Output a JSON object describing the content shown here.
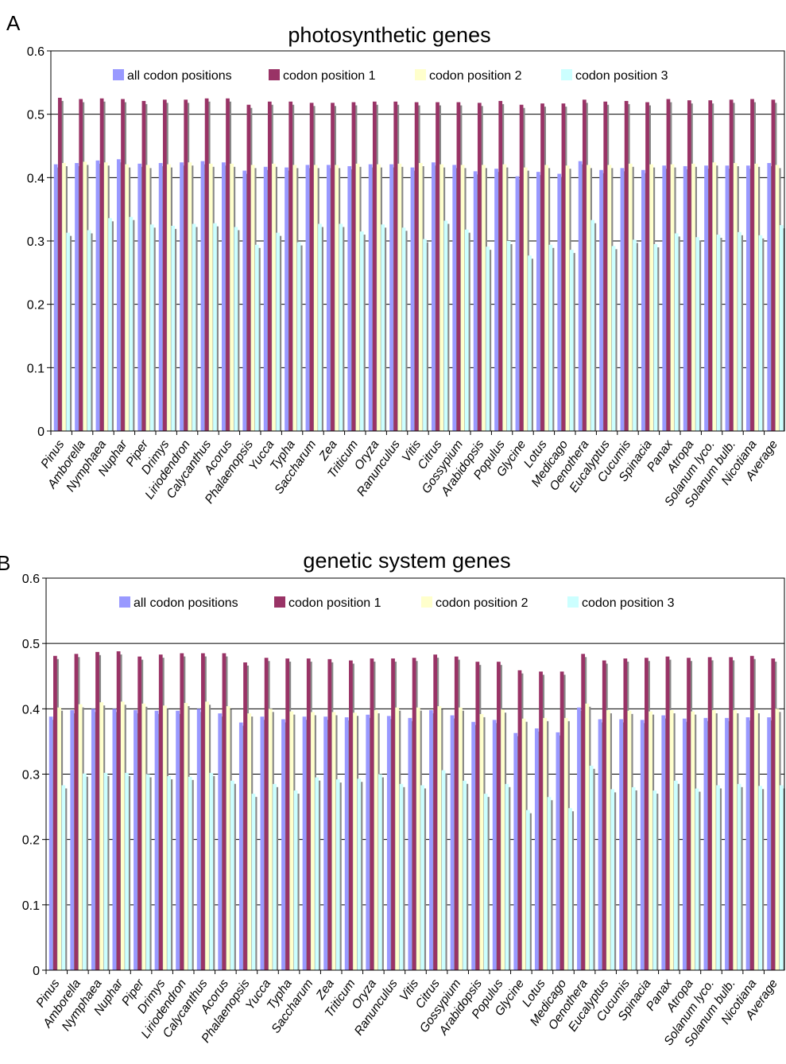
{
  "panels": [
    {
      "letter": "A",
      "title": "photosynthetic genes"
    },
    {
      "letter": "B",
      "title": "genetic system genes"
    }
  ],
  "colors": {
    "all_codon_positions": "#9999ff",
    "codon_position_1": "#993366",
    "codon_position_2": "#ffffcc",
    "codon_position_3": "#ccffff",
    "shadow": "#888888",
    "gridline": "#000000",
    "background": "#ffffff"
  },
  "chart_data": [
    {
      "type": "bar",
      "title": "photosynthetic genes",
      "xlabel": "",
      "ylabel": "",
      "ylim": [
        0,
        0.6
      ],
      "yticks": [
        "0",
        "0.1",
        "0.2",
        "0.3",
        "0.4",
        "0.5",
        "0.6"
      ],
      "grid": true,
      "legend": "top",
      "categories": [
        "Pinus",
        "Amborella",
        "Nymphaea",
        "Nuphar",
        "Piper",
        "Drimys",
        "Liriodendron",
        "Calycanthus",
        "Acorus",
        "Phalaenopsis",
        "Yucca",
        "Typha",
        "Saccharum",
        "Zea",
        "Triticum",
        "Oryza",
        "Ranunculus",
        "Vitis",
        "Citrus",
        "Gossypium",
        "Arabidopsis",
        "Populus",
        "Glycine",
        "Lotus",
        "Medicago",
        "Oenothera",
        "Eucalyptus",
        "Cucumis",
        "Spinacia",
        "Panax",
        "Atropa",
        "Solanum lyco.",
        "Solanum bulb.",
        "Nicotiana",
        "Average"
      ],
      "series": [
        {
          "name": "all codon positions",
          "values": [
            0.421,
            0.423,
            0.427,
            0.429,
            0.422,
            0.423,
            0.424,
            0.426,
            0.424,
            0.411,
            0.417,
            0.416,
            0.42,
            0.42,
            0.418,
            0.421,
            0.421,
            0.416,
            0.424,
            0.42,
            0.41,
            0.414,
            0.402,
            0.409,
            0.406,
            0.426,
            0.412,
            0.415,
            0.412,
            0.419,
            0.418,
            0.419,
            0.419,
            0.419,
            0.423
          ]
        },
        {
          "name": "codon position 1",
          "values": [
            0.526,
            0.524,
            0.525,
            0.524,
            0.521,
            0.523,
            0.523,
            0.525,
            0.525,
            0.515,
            0.52,
            0.52,
            0.518,
            0.518,
            0.519,
            0.52,
            0.52,
            0.519,
            0.519,
            0.519,
            0.518,
            0.521,
            0.515,
            0.517,
            0.517,
            0.523,
            0.52,
            0.521,
            0.519,
            0.524,
            0.522,
            0.522,
            0.523,
            0.524,
            0.523
          ]
        },
        {
          "name": "codon position 2",
          "values": [
            0.423,
            0.425,
            0.424,
            0.421,
            0.42,
            0.421,
            0.424,
            0.422,
            0.422,
            0.42,
            0.422,
            0.42,
            0.42,
            0.42,
            0.422,
            0.421,
            0.422,
            0.423,
            0.421,
            0.42,
            0.42,
            0.421,
            0.416,
            0.42,
            0.419,
            0.42,
            0.42,
            0.422,
            0.421,
            0.421,
            0.422,
            0.424,
            0.423,
            0.422,
            0.42
          ]
        },
        {
          "name": "codon position 3",
          "values": [
            0.313,
            0.317,
            0.336,
            0.338,
            0.326,
            0.324,
            0.327,
            0.328,
            0.322,
            0.294,
            0.313,
            0.298,
            0.327,
            0.327,
            0.315,
            0.326,
            0.321,
            0.303,
            0.332,
            0.318,
            0.291,
            0.3,
            0.277,
            0.294,
            0.286,
            0.333,
            0.292,
            0.302,
            0.295,
            0.312,
            0.306,
            0.31,
            0.314,
            0.309,
            0.325
          ]
        }
      ]
    },
    {
      "type": "bar",
      "title": "genetic system genes",
      "xlabel": "",
      "ylabel": "",
      "ylim": [
        0,
        0.6
      ],
      "yticks": [
        "0",
        "0.1",
        "0.2",
        "0.3",
        "0.4",
        "0.5",
        "0.6"
      ],
      "grid": true,
      "legend": "top",
      "categories": [
        "Pinus",
        "Amborella",
        "Nymphaea",
        "Nuphar",
        "Piper",
        "Drimys",
        "Liriodendron",
        "Calycanthus",
        "Acorus",
        "Phalaenopsis",
        "Yucca",
        "Typha",
        "Saccharum",
        "Zea",
        "Triticum",
        "Oryza",
        "Ranunculus",
        "Vitis",
        "Citrus",
        "Gossypium",
        "Arabidopsis",
        "Populus",
        "Glycine",
        "Lotus",
        "Medicago",
        "Oenothera",
        "Eucalyptus",
        "Cucumis",
        "Spinacia",
        "Panax",
        "Atropa",
        "Solanum lyco.",
        "Solanum bulb.",
        "Nicotiana",
        "Average"
      ],
      "series": [
        {
          "name": "all codon positions",
          "values": [
            0.388,
            0.398,
            0.4,
            0.4,
            0.398,
            0.397,
            0.397,
            0.4,
            0.393,
            0.379,
            0.388,
            0.384,
            0.388,
            0.388,
            0.387,
            0.391,
            0.389,
            0.386,
            0.398,
            0.39,
            0.38,
            0.383,
            0.363,
            0.37,
            0.364,
            0.402,
            0.384,
            0.384,
            0.383,
            0.39,
            0.385,
            0.386,
            0.386,
            0.387,
            0.387
          ]
        },
        {
          "name": "codon position 1",
          "values": [
            0.481,
            0.484,
            0.487,
            0.488,
            0.48,
            0.483,
            0.485,
            0.485,
            0.485,
            0.471,
            0.478,
            0.477,
            0.477,
            0.476,
            0.474,
            0.477,
            0.477,
            0.478,
            0.483,
            0.48,
            0.472,
            0.472,
            0.459,
            0.457,
            0.457,
            0.484,
            0.474,
            0.477,
            0.478,
            0.48,
            0.478,
            0.479,
            0.479,
            0.481,
            0.477
          ]
        },
        {
          "name": "codon position 2",
          "values": [
            0.402,
            0.407,
            0.41,
            0.411,
            0.408,
            0.405,
            0.409,
            0.411,
            0.404,
            0.393,
            0.4,
            0.396,
            0.395,
            0.395,
            0.394,
            0.398,
            0.402,
            0.402,
            0.404,
            0.402,
            0.392,
            0.399,
            0.385,
            0.386,
            0.386,
            0.408,
            0.398,
            0.397,
            0.396,
            0.398,
            0.396,
            0.398,
            0.398,
            0.398,
            0.4
          ]
        },
        {
          "name": "codon position 3",
          "values": [
            0.283,
            0.301,
            0.302,
            0.302,
            0.3,
            0.297,
            0.296,
            0.302,
            0.29,
            0.27,
            0.285,
            0.275,
            0.295,
            0.292,
            0.293,
            0.3,
            0.285,
            0.283,
            0.306,
            0.29,
            0.27,
            0.285,
            0.245,
            0.265,
            0.248,
            0.313,
            0.277,
            0.28,
            0.275,
            0.29,
            0.278,
            0.283,
            0.285,
            0.282,
            0.283
          ]
        }
      ]
    }
  ]
}
